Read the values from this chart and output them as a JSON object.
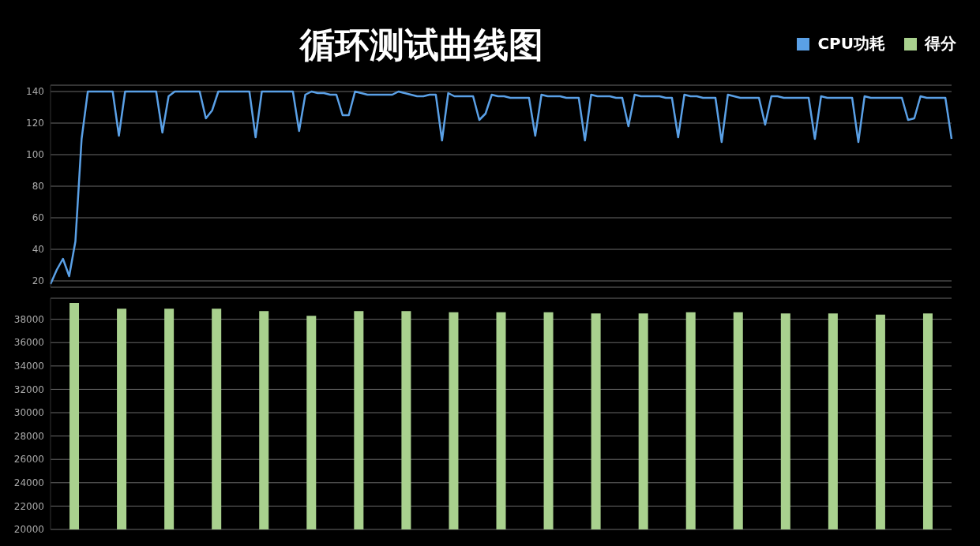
{
  "chart_data": [
    {
      "type": "line",
      "title": "循环测试曲线图",
      "categories": [
        null,
        null,
        null,
        null,
        null,
        null,
        null,
        null,
        null,
        null,
        null,
        null,
        null,
        null,
        null,
        null,
        null,
        null,
        null,
        null,
        null,
        null,
        null,
        null,
        null,
        null,
        null,
        null,
        null,
        null,
        null,
        null,
        null,
        null,
        null,
        null,
        null,
        null,
        null,
        null,
        null,
        null,
        null,
        null,
        null,
        null,
        null,
        null,
        null,
        null,
        null,
        null,
        null,
        null,
        null,
        null,
        null,
        null,
        null,
        null,
        null,
        null,
        null,
        null,
        null,
        null,
        null,
        null,
        null,
        null,
        null,
        null,
        null,
        null,
        null,
        null,
        null,
        null,
        null,
        null,
        null,
        null,
        null,
        null,
        null,
        null,
        null,
        null,
        null,
        null,
        null,
        null,
        null,
        null,
        null,
        null,
        null,
        null,
        null,
        null,
        null,
        null,
        null,
        null,
        null,
        null,
        null,
        null,
        null,
        null,
        null,
        null,
        null,
        null,
        null,
        null,
        null,
        null,
        null,
        null,
        null,
        null,
        null,
        null,
        null,
        null,
        null,
        null,
        null,
        null,
        null,
        null,
        null,
        null,
        null,
        null,
        null,
        null,
        null,
        null,
        null,
        null,
        null,
        null,
        null,
        null
      ],
      "series": [
        {
          "name": "CPU功耗",
          "color": "#5aa0e6",
          "values": [
            18,
            27,
            34,
            23,
            45,
            110,
            140,
            140,
            140,
            140,
            140,
            112,
            140,
            140,
            140,
            140,
            140,
            140,
            114,
            137,
            140,
            140,
            140,
            140,
            140,
            123,
            128,
            140,
            140,
            140,
            140,
            140,
            140,
            111,
            140,
            140,
            140,
            140,
            140,
            140,
            115,
            138,
            140,
            139,
            139,
            138,
            138,
            125,
            125,
            140,
            139,
            138,
            138,
            138,
            138,
            138,
            140,
            139,
            138,
            137,
            137,
            138,
            138,
            109,
            139,
            137,
            137,
            137,
            137,
            122,
            126,
            138,
            137,
            137,
            136,
            136,
            136,
            136,
            112,
            138,
            137,
            137,
            137,
            136,
            136,
            136,
            109,
            138,
            137,
            137,
            137,
            136,
            136,
            118,
            138,
            137,
            137,
            137,
            137,
            136,
            136,
            111,
            138,
            137,
            137,
            136,
            136,
            136,
            108,
            138,
            137,
            136,
            136,
            136,
            136,
            119,
            137,
            137,
            136,
            136,
            136,
            136,
            136,
            110,
            137,
            136,
            136,
            136,
            136,
            136,
            108,
            137,
            136,
            136,
            136,
            136,
            136,
            136,
            122,
            123,
            137,
            136,
            136,
            136,
            136,
            110
          ]
        }
      ],
      "ylim": [
        16,
        144
      ],
      "yticks": [
        20,
        40,
        60,
        80,
        100,
        120,
        140
      ],
      "grid": "y",
      "legend": "top right",
      "marker": "none",
      "line_style": "solid"
    },
    {
      "type": "bar",
      "categories": [
        null,
        null,
        null,
        null,
        null,
        null,
        null,
        null,
        null,
        null,
        null,
        null,
        null,
        null,
        null,
        null,
        null,
        null,
        null
      ],
      "series": [
        {
          "name": "得分",
          "color": "#a9d18e",
          "values": [
            39400,
            38900,
            38900,
            38900,
            38700,
            38300,
            38700,
            38700,
            38600,
            38600,
            38600,
            38500,
            38500,
            38600,
            38600,
            38500,
            38500,
            38400,
            38500
          ]
        }
      ],
      "ylim": [
        20000,
        39800
      ],
      "yticks": [
        20000,
        22000,
        24000,
        26000,
        28000,
        30000,
        32000,
        34000,
        36000,
        38000
      ],
      "grid": "y",
      "legend": "top right"
    }
  ]
}
